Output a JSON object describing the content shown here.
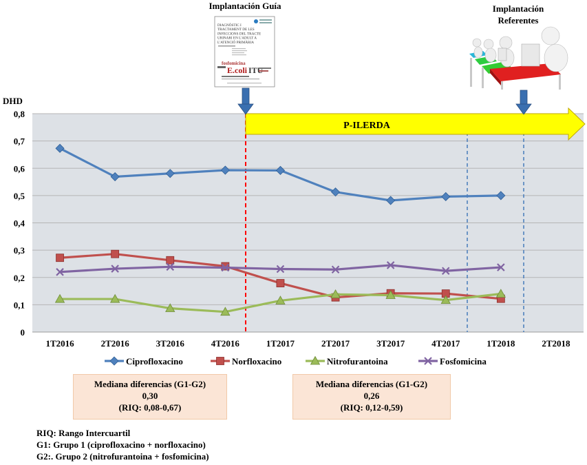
{
  "chart_data": {
    "type": "line",
    "ylabel": "DHD",
    "ylim": [
      0,
      0.8
    ],
    "yticks": [
      "0",
      "0,1",
      "0,2",
      "0,3",
      "0,4",
      "0,5",
      "0,6",
      "0,7",
      "0,8"
    ],
    "categories": [
      "1T2016",
      "2T2016",
      "3T2016",
      "4T2016",
      "1T2017",
      "2T2017",
      "3T2017",
      "4T2017",
      "1T2018",
      "2T2018"
    ],
    "series": [
      {
        "name": "Ciprofloxacino",
        "color": "#4f81bd",
        "marker": "diamond",
        "values": [
          0.673,
          0.569,
          0.581,
          0.593,
          0.592,
          0.513,
          0.482,
          0.496,
          0.5,
          null
        ]
      },
      {
        "name": "Norfloxacino",
        "color": "#c0504d",
        "marker": "square",
        "values": [
          0.272,
          0.286,
          0.263,
          0.241,
          0.179,
          0.127,
          0.142,
          0.141,
          0.122,
          null
        ]
      },
      {
        "name": "Nitrofurantoina",
        "color": "#9bbb59",
        "marker": "triangle",
        "values": [
          0.121,
          0.121,
          0.087,
          0.074,
          0.115,
          0.138,
          0.135,
          0.117,
          0.14,
          null
        ]
      },
      {
        "name": "Fosfomicina",
        "color": "#8064a2",
        "marker": "x",
        "values": [
          0.22,
          0.232,
          0.239,
          0.236,
          0.231,
          0.229,
          0.245,
          0.224,
          0.237,
          null
        ]
      }
    ],
    "grid": true,
    "legend": "bottom",
    "annotations": {
      "guia_title": "Implantación Guía",
      "referentes_title_line1": "Implantación",
      "referentes_title_line2": "Referentes",
      "arrow_label": "P-ILERDA",
      "guide_cover_lines": [
        "DIAGNÒSTIC I",
        "TRACTAMENT DE LES",
        "INFECCIONS DEL TRACTE",
        "URINARI EN L'ADULT A",
        "L'ATENCIÓ PRIMÀRIA"
      ],
      "guide_cover_words": [
        "E.coli",
        "ITU",
        "fosfomicina"
      ]
    }
  },
  "boxes": [
    {
      "title": "Mediana  diferencias (G1-G2)",
      "value": "0,30",
      "riq": "(RIQ: 0,08-0,67)"
    },
    {
      "title": "Mediana  diferencias (G1-G2)",
      "value": "0,26",
      "riq": "(RIQ: 0,12-0,59)"
    }
  ],
  "notes": [
    "RIQ: Rango Intercuartil",
    "G1: Grupo 1 (ciprofloxacino + norfloxacino)",
    "G2:. Grupo 2 (nitrofurantoina + fosfomicina)"
  ]
}
